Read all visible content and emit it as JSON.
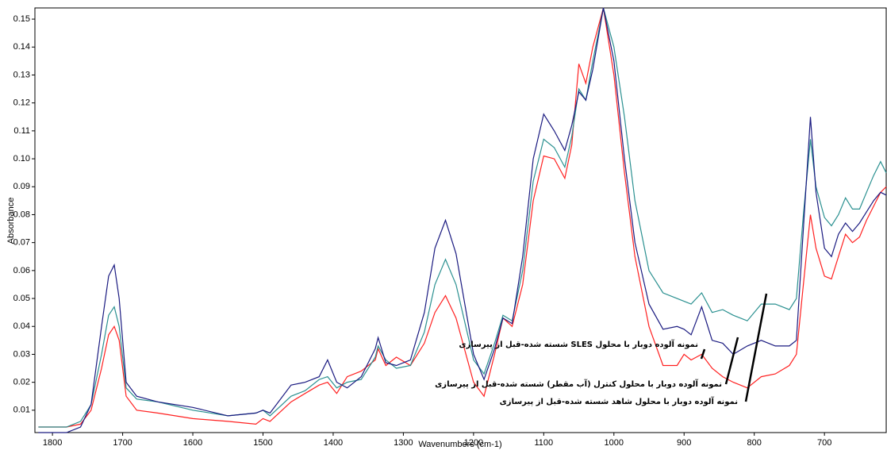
{
  "chart_data": {
    "type": "line",
    "xlabel": "Wavenumbers (cm-1)",
    "ylabel": "Absorbance",
    "x": [
      1820,
      1780,
      1760,
      1745,
      1730,
      1720,
      1712,
      1705,
      1695,
      1680,
      1650,
      1600,
      1550,
      1510,
      1500,
      1490,
      1460,
      1440,
      1420,
      1408,
      1395,
      1380,
      1360,
      1340,
      1336,
      1325,
      1310,
      1290,
      1270,
      1255,
      1240,
      1225,
      1200,
      1185,
      1170,
      1158,
      1145,
      1130,
      1115,
      1100,
      1085,
      1070,
      1060,
      1050,
      1040,
      1030,
      1015,
      1000,
      985,
      970,
      950,
      930,
      910,
      900,
      890,
      875,
      860,
      845,
      830,
      810,
      790,
      770,
      750,
      740,
      730,
      720,
      712,
      700,
      690,
      680,
      670,
      660,
      650,
      640,
      630,
      620,
      612
    ],
    "series": [
      {
        "color": "#ff2020",
        "values": [
          0.004,
          0.004,
          0.005,
          0.01,
          0.025,
          0.037,
          0.04,
          0.035,
          0.015,
          0.01,
          0.009,
          0.007,
          0.006,
          0.005,
          0.007,
          0.006,
          0.013,
          0.016,
          0.019,
          0.02,
          0.016,
          0.022,
          0.024,
          0.028,
          0.032,
          0.026,
          0.029,
          0.026,
          0.034,
          0.045,
          0.051,
          0.043,
          0.02,
          0.015,
          0.03,
          0.043,
          0.04,
          0.055,
          0.085,
          0.101,
          0.1,
          0.093,
          0.105,
          0.134,
          0.127,
          0.14,
          0.154,
          0.13,
          0.095,
          0.065,
          0.04,
          0.026,
          0.026,
          0.03,
          0.028,
          0.03,
          0.025,
          0.022,
          0.02,
          0.018,
          0.022,
          0.023,
          0.026,
          0.03,
          0.055,
          0.08,
          0.068,
          0.058,
          0.057,
          0.065,
          0.073,
          0.07,
          0.072,
          0.078,
          0.083,
          0.088,
          0.09
        ]
      },
      {
        "color": "#2a9090",
        "values": [
          0.004,
          0.004,
          0.006,
          0.012,
          0.03,
          0.044,
          0.047,
          0.04,
          0.018,
          0.014,
          0.013,
          0.01,
          0.008,
          0.009,
          0.01,
          0.008,
          0.015,
          0.017,
          0.021,
          0.022,
          0.018,
          0.02,
          0.021,
          0.029,
          0.033,
          0.028,
          0.025,
          0.026,
          0.038,
          0.055,
          0.064,
          0.055,
          0.028,
          0.023,
          0.034,
          0.044,
          0.042,
          0.06,
          0.092,
          0.107,
          0.104,
          0.097,
          0.108,
          0.125,
          0.121,
          0.135,
          0.154,
          0.14,
          0.115,
          0.085,
          0.06,
          0.052,
          0.05,
          0.049,
          0.048,
          0.052,
          0.045,
          0.046,
          0.044,
          0.042,
          0.048,
          0.048,
          0.046,
          0.05,
          0.08,
          0.107,
          0.09,
          0.079,
          0.076,
          0.08,
          0.086,
          0.082,
          0.082,
          0.088,
          0.094,
          0.099,
          0.095
        ]
      },
      {
        "color": "#1a1a80",
        "values": [
          0.002,
          0.002,
          0.004,
          0.012,
          0.04,
          0.058,
          0.062,
          0.05,
          0.02,
          0.015,
          0.013,
          0.011,
          0.008,
          0.009,
          0.01,
          0.009,
          0.019,
          0.02,
          0.022,
          0.028,
          0.02,
          0.018,
          0.022,
          0.032,
          0.036,
          0.027,
          0.026,
          0.028,
          0.045,
          0.068,
          0.078,
          0.066,
          0.03,
          0.021,
          0.032,
          0.043,
          0.041,
          0.065,
          0.1,
          0.116,
          0.11,
          0.103,
          0.112,
          0.124,
          0.121,
          0.132,
          0.154,
          0.135,
          0.1,
          0.07,
          0.048,
          0.039,
          0.04,
          0.039,
          0.037,
          0.047,
          0.035,
          0.034,
          0.03,
          0.033,
          0.035,
          0.033,
          0.033,
          0.035,
          0.075,
          0.115,
          0.088,
          0.068,
          0.065,
          0.073,
          0.077,
          0.074,
          0.077,
          0.081,
          0.085,
          0.088,
          0.087
        ]
      }
    ],
    "xlim": [
      1825,
      612
    ],
    "ylim": [
      0.002,
      0.154
    ],
    "xticks": [
      1800,
      1700,
      1600,
      1500,
      1400,
      1300,
      1200,
      1100,
      1000,
      900,
      800,
      700
    ],
    "yticks": [
      0.01,
      0.02,
      0.03,
      0.04,
      0.05,
      0.06,
      0.07,
      0.08,
      0.09,
      {
        "value": 0.1,
        "label": "0.10"
      },
      0.11,
      0.12,
      0.13,
      0.14,
      0.15
    ],
    "annotations": [
      {
        "text": "نمونه آلوده دوبار با محلول SLES شسته شده-قبل از پیرسازی"
      },
      {
        "text": "نمونه آلوده دوبار با محلول کنترل (آب مقطر) شسته شده-قبل از پیرسازی"
      },
      {
        "text": "نمونه آلوده دوبار با محلول شاهد شسته شده-قبل از پیرسازی"
      }
    ]
  }
}
